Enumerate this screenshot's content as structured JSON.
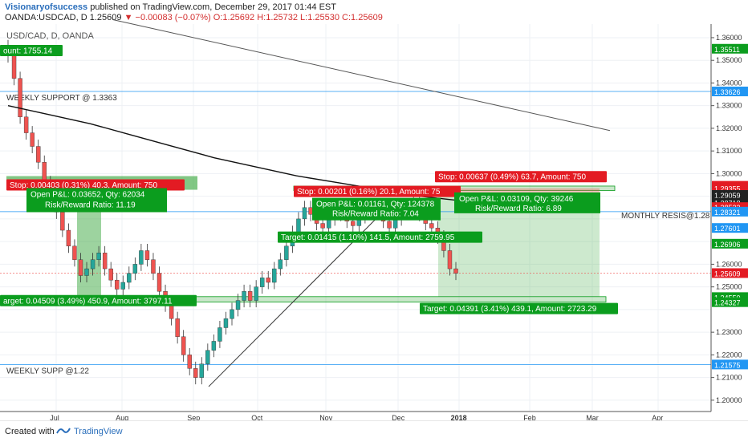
{
  "header": {
    "author": "Visionaryofsuccess",
    "published": "published on TradingView.com, December 29, 2017 01:44 EST",
    "symbol": "OANDA:USDCAD, D",
    "last": "1.25609",
    "change": "−0.00083 (−0.07%)",
    "open": "O:1.25692",
    "high": "H:1.25732",
    "low": "L:1.25530",
    "close": "C:1.25609"
  },
  "legend_symbol": "USD/CAD, D, OANDA",
  "colors": {
    "up": "#26a69a",
    "down": "#ef5350",
    "green_label": "#0b9d1e",
    "red_label": "#e31b23",
    "grid": "#eef0f4",
    "axis": "#222"
  },
  "chart_data": {
    "type": "candlestick",
    "price_axis": [
      "1.36000",
      "1.35511",
      "1.35000",
      "1.34000",
      "1.33626",
      "1.33000",
      "1.32000",
      "1.31000",
      "1.30000",
      "1.29462",
      "1.29355",
      "1.29059",
      "1.28718",
      "1.28522",
      "1.28321",
      "1.27601",
      "1.26906",
      "1.26000",
      "1.25609",
      "1.25000",
      "1.24550",
      "1.24327",
      "1.23000",
      "1.22000",
      "1.21575",
      "1.21000",
      "1.20000"
    ],
    "highlighted_prices": [
      {
        "value": "1.35511",
        "color": "#0b9d1e"
      },
      {
        "value": "1.33626",
        "color": "#2196f3"
      },
      {
        "value": "1.29462",
        "color": "#e31b23"
      },
      {
        "value": "1.29355",
        "color": "#e31b23"
      },
      {
        "value": "1.29059",
        "color": "#222"
      },
      {
        "value": "1.28718",
        "color": "#222"
      },
      {
        "value": "1.28522",
        "color": "#e31b23"
      },
      {
        "value": "1.28321",
        "color": "#2196f3"
      },
      {
        "value": "1.27601",
        "color": "#2196f3"
      },
      {
        "value": "1.26906",
        "color": "#0b9d1e"
      },
      {
        "value": "1.25609",
        "color": "#e31b23"
      },
      {
        "value": "1.24550",
        "color": "#0b9d1e"
      },
      {
        "value": "1.24327",
        "color": "#0b9d1e"
      },
      {
        "value": "1.21575",
        "color": "#2196f3"
      }
    ],
    "time_axis": [
      "Jul",
      "Aug",
      "Sep",
      "Oct",
      "Nov",
      "Dec",
      "2018",
      "Feb",
      "Mar",
      "Apr"
    ],
    "horizontal_levels": [
      {
        "label": "WEEKLY SUPPORT @ 1.3363",
        "value": 1.33626
      },
      {
        "label": "MONTHLY RESIS@1.28",
        "value": 1.28321
      },
      {
        "label": "WEEKLY SUPP @1.22",
        "value": 1.21575
      }
    ],
    "candles_close": [
      1.352,
      1.342,
      1.325,
      1.318,
      1.312,
      1.305,
      1.296,
      1.29,
      1.283,
      1.275,
      1.268,
      1.262,
      1.255,
      1.258,
      1.262,
      1.265,
      1.258,
      1.253,
      1.249,
      1.252,
      1.256,
      1.26,
      1.266,
      1.262,
      1.256,
      1.248,
      1.242,
      1.236,
      1.228,
      1.22,
      1.214,
      1.21,
      1.216,
      1.222,
      1.226,
      1.232,
      1.236,
      1.24,
      1.244,
      1.248,
      1.244,
      1.25,
      1.254,
      1.252,
      1.258,
      1.262,
      1.268,
      1.274,
      1.28,
      1.285,
      1.282,
      1.278,
      1.276,
      1.28,
      1.284,
      1.282,
      1.279,
      1.277,
      1.281,
      1.284,
      1.286,
      1.283,
      1.279,
      1.276,
      1.28,
      1.283,
      1.285,
      1.287,
      1.282,
      1.278,
      1.276,
      1.272,
      1.266,
      1.258,
      1.256
    ],
    "sma_values": [
      1.33,
      1.326,
      1.322,
      1.317,
      1.312,
      1.307,
      1.303,
      1.299,
      1.296,
      1.293,
      1.29,
      1.288
    ],
    "trendline_top": {
      "from": 1.368,
      "to": 1.319
    },
    "trendline_bottom": {
      "from": 1.206,
      "to": 1.287
    }
  },
  "annotations": {
    "left_amount": "ount: 1755.14",
    "left_stop": "Stop: 0.00403 (0.31%) 40.3, Amount: 750",
    "left_open1": "Open P&L: 0.03652, Qty: 62034",
    "left_open2": "Risk/Reward Ratio: 11.19",
    "left_target": "arget: 0.04509 (3.49%) 450.9, Amount: 3797.11",
    "mid_stop": "Stop: 0.00201 (0.16%) 20.1, Amount: 75",
    "mid_open1": "Open P&L: 0.01161, Qty: 124378",
    "mid_open2": "Risk/Reward Ratio: 7.04",
    "mid_target": "Target: 0.01415 (1.10%) 141.5, Amount: 2759.95",
    "right_stop": "Stop: 0.00637 (0.49%) 63.7, Amount: 750",
    "right_open1": "Open P&L: 0.03109, Qty: 39246",
    "right_open2": "Risk/Reward Ratio: 6.89",
    "right_target": "Target: 0.04391 (3.41%) 439.1, Amount: 2723.29"
  },
  "footer": {
    "created_with": "Created with",
    "brand": "TradingView"
  }
}
